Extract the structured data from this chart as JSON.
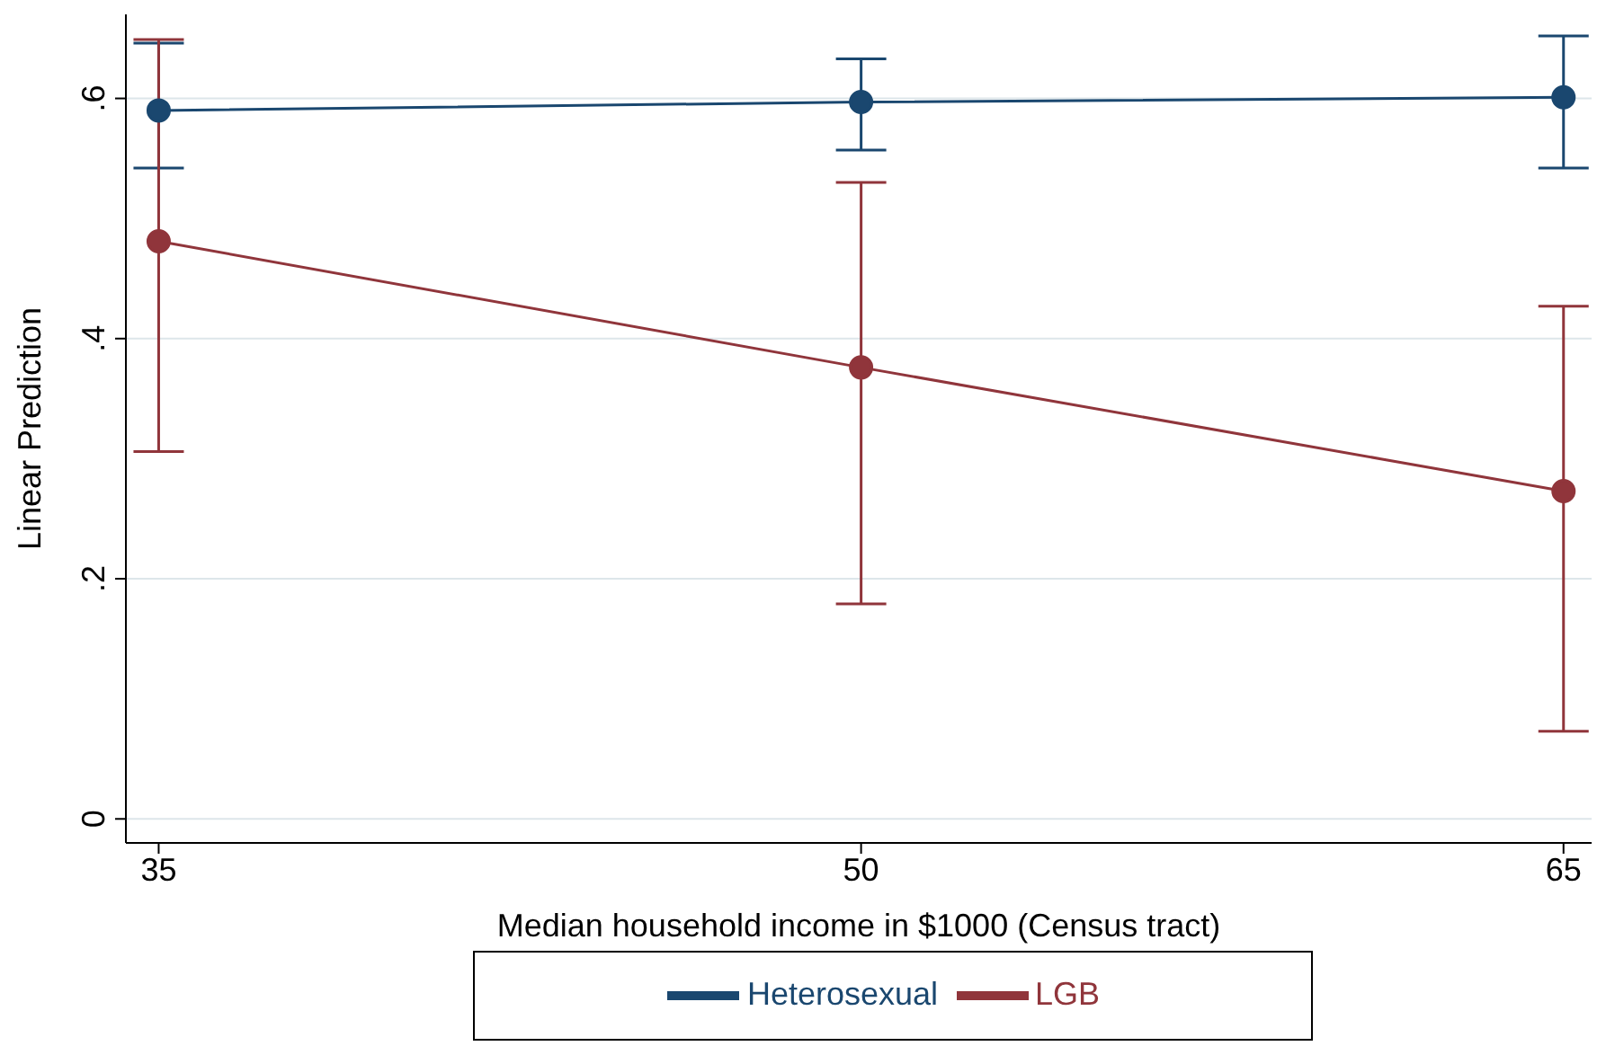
{
  "chart_data": {
    "type": "line",
    "xlabel": "Median household income in $1000 (Census tract)",
    "ylabel": "Linear Prediction",
    "x": [
      35,
      50,
      65
    ],
    "series": [
      {
        "name": "Heterosexual",
        "color": "#1a476f",
        "values": [
          0.59,
          0.597,
          0.601
        ],
        "errors": [
          [
            0.542,
            0.646
          ],
          [
            0.557,
            0.633
          ],
          [
            0.542,
            0.652
          ]
        ]
      },
      {
        "name": "LGB",
        "color": "#90353b",
        "values": [
          0.481,
          0.376,
          0.273
        ],
        "errors": [
          [
            0.306,
            0.649
          ],
          [
            0.179,
            0.53
          ],
          [
            0.073,
            0.427
          ]
        ]
      }
    ],
    "xlim": [
      34.3,
      65.6
    ],
    "xticks": [
      35,
      50,
      65
    ],
    "ylim": [
      -0.02,
      0.67
    ],
    "yticks": [
      {
        "value": 0,
        "label": "0"
      },
      {
        "value": 0.2,
        "label": ".2"
      },
      {
        "value": 0.4,
        "label": ".4"
      },
      {
        "value": 0.6,
        "label": ".6"
      }
    ],
    "grid": "y",
    "legend": "bottom",
    "marker": "circle",
    "line_style": "solid"
  }
}
